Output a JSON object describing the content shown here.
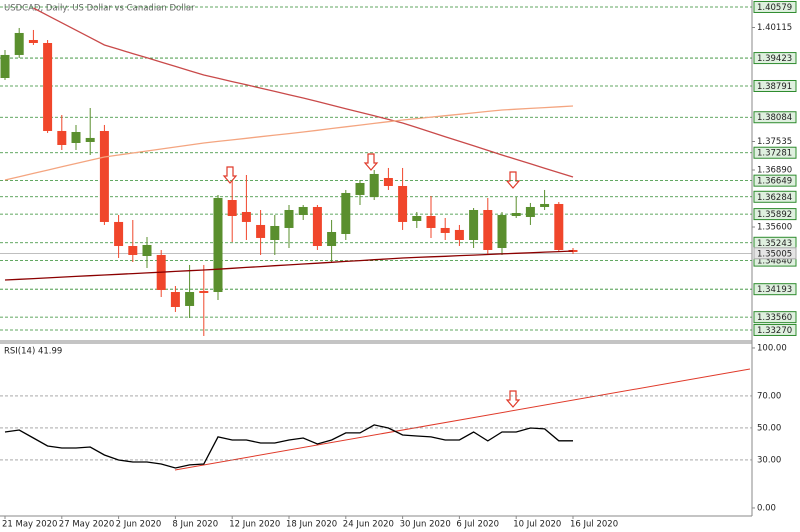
{
  "chart_data": [
    {
      "type": "candlestick",
      "title": "USDCAD, Daily:  US Dollar vs Canadian Dollar",
      "categories": [
        "21 May 2020",
        null,
        null,
        null,
        "27 May 2020",
        null,
        null,
        null,
        "2 Jun 2020",
        null,
        null,
        null,
        "8 Jun 2020",
        null,
        null,
        null,
        "12 Jun 2020",
        null,
        null,
        null,
        "18 Jun 2020",
        null,
        null,
        null,
        "24 Jun 2020",
        null,
        null,
        null,
        "30 Jun 2020",
        null,
        null,
        null,
        "6 Jul 2020",
        null,
        null,
        null,
        "10 Jul 2020",
        null,
        null,
        null,
        "16 Jul 2020"
      ],
      "open": [
        1.38972,
        1.39493,
        1.39832,
        1.39764,
        1.37773,
        1.37501,
        1.37524,
        1.37773,
        1.35714,
        1.3517,
        1.34944,
        1.34967,
        1.34129,
        1.33813,
        1.34152,
        1.34129,
        1.36211,
        1.3594,
        1.35646,
        1.35306,
        1.35578,
        1.35872,
        1.36053,
        1.3517,
        1.35442,
        1.36325,
        1.36279,
        1.36709,
        1.36528,
        1.35736,
        1.35849,
        1.35578,
        1.35533,
        1.35306,
        1.35985,
        1.35125,
        1.35849,
        1.35827,
        1.36053,
        1.36121,
        1.3508
      ],
      "high": [
        1.39606,
        1.40104,
        1.40059,
        1.39832,
        1.38135,
        1.37909,
        1.38293,
        1.37909,
        1.35872,
        1.35759,
        1.35374,
        1.3508,
        1.34265,
        1.34741,
        1.34741,
        1.36325,
        1.36664,
        1.36777,
        1.35985,
        1.35872,
        1.36098,
        1.36098,
        1.36098,
        1.35759,
        1.36438,
        1.36664,
        1.3689,
        1.36936,
        1.36936,
        1.3594,
        1.36302,
        1.35804,
        1.35646,
        1.3603,
        1.36257,
        1.3594,
        1.36279,
        1.36144,
        1.36438,
        1.36166,
        1.35125
      ],
      "low": [
        1.38927,
        1.39425,
        1.39719,
        1.37728,
        1.37343,
        1.37343,
        1.3723,
        1.35646,
        1.34899,
        1.34808,
        1.34673,
        1.34016,
        1.33677,
        1.33541,
        1.33134,
        1.33948,
        1.35261,
        1.35306,
        1.34967,
        1.34967,
        1.35125,
        1.35759,
        1.3508,
        1.34808,
        1.35306,
        1.36098,
        1.36211,
        1.36438,
        1.35533,
        1.35578,
        1.35352,
        1.35306,
        1.3517,
        1.35125,
        1.34989,
        1.34967,
        1.35804,
        1.35646,
        1.35985,
        1.35035,
        1.34989
      ],
      "close": [
        1.39493,
        1.39991,
        1.39764,
        1.37773,
        1.37456,
        1.3775,
        1.37615,
        1.35714,
        1.3517,
        1.34967,
        1.35193,
        1.34175,
        1.3379,
        1.34129,
        1.34107,
        1.36257,
        1.35849,
        1.35714,
        1.35352,
        1.35623,
        1.35985,
        1.36053,
        1.3517,
        1.35487,
        1.3637,
        1.36596,
        1.368,
        1.36528,
        1.35714,
        1.35849,
        1.35578,
        1.35465,
        1.35306,
        1.35985,
        1.3508,
        1.35872,
        1.35917,
        1.36053,
        1.36121,
        1.3508,
        1.35035
      ],
      "up_color": "#5a8f2e",
      "down_color": "#f0462b",
      "series": [
        {
          "color": "#c94a4a",
          "values": [
            null,
            null,
            1.40556,
            1.40389,
            1.40221,
            1.40054,
            1.39886,
            1.39719,
            1.39622,
            1.39525,
            1.39428,
            1.39331,
            1.39234,
            1.39137,
            1.3904,
            1.38966,
            1.38891,
            1.38817,
            1.38743,
            1.38668,
            1.38594,
            1.3852,
            1.38439,
            1.38358,
            1.38277,
            1.38196,
            1.38116,
            1.38035,
            1.37954,
            1.37851,
            1.37747,
            1.37644,
            1.37541,
            1.37437,
            1.37334,
            1.3723,
            1.3713,
            1.37031,
            1.36931,
            1.36832,
            1.36732
          ]
        },
        {
          "color": "#f4a580",
          "values": [
            1.36664,
            1.36738,
            1.36813,
            1.36887,
            1.36962,
            1.37036,
            1.37111,
            1.37185,
            1.3723,
            1.37275,
            1.3732,
            1.37366,
            1.37411,
            1.37456,
            1.37501,
            1.37537,
            1.37572,
            1.37608,
            1.37643,
            1.37679,
            1.37714,
            1.3775,
            1.37789,
            1.37828,
            1.37867,
            1.37906,
            1.37944,
            1.37983,
            1.38022,
            1.38054,
            1.38087,
            1.38119,
            1.38151,
            1.38183,
            1.38216,
            1.38248,
            1.38266,
            1.38284,
            1.38303,
            1.38321,
            1.38339
          ]
        },
        {
          "color": "#8b0000",
          "values": [
            1.34401,
            1.34417,
            1.34433,
            1.34449,
            1.34466,
            1.34482,
            1.34498,
            1.34514,
            1.3453,
            1.34546,
            1.34562,
            1.34578,
            1.34595,
            1.34611,
            1.34627,
            1.34646,
            1.34666,
            1.34685,
            1.34705,
            1.34724,
            1.34743,
            1.34763,
            1.34782,
            1.34802,
            1.34821,
            1.3484,
            1.3486,
            1.34879,
            1.34899,
            1.34912,
            1.34925,
            1.34938,
            1.34952,
            1.34965,
            1.34978,
            1.34991,
            1.35004,
            1.35017,
            1.35031,
            1.35044,
            1.35057
          ]
        }
      ],
      "ylim": [
        1.33043,
        1.40737
      ],
      "yticks": [
        1.40115,
        1.37535,
        {
          "value": 1.3689,
          "label": "1.36890"
        },
        {
          "value": 1.356,
          "label": "1.35600"
        }
      ],
      "levels": [
        1.40579,
        1.39423,
        1.38791,
        1.38084,
        1.37281,
        1.36649,
        1.36284,
        1.35892,
        1.35243,
        {
          "value": 1.3484,
          "label": "1.34840"
        },
        1.34193,
        {
          "value": 1.3356,
          "label": "1.33560"
        },
        {
          "value": 1.3327,
          "label": "1.33270"
        }
      ],
      "level_color": "#2e8b2e",
      "current_price": 1.35005
    },
    {
      "type": "line",
      "title": "RSI(14) 41.99",
      "series": [
        {
          "color": "#000000",
          "values": [
            47.5,
            48.75,
            43.75,
            38.75,
            37.5,
            37.5,
            38.1,
            33.1,
            30,
            28.75,
            28.75,
            27.5,
            25,
            26.9,
            27.5,
            44.4,
            42.5,
            42.5,
            40.6,
            40.6,
            42.5,
            43.75,
            40,
            42.5,
            46.9,
            46.9,
            51.9,
            50,
            45.6,
            45,
            44.4,
            42.5,
            42.5,
            47.5,
            41.9,
            47.5,
            47.5,
            50,
            49.4,
            41.99,
            41.99
          ]
        }
      ],
      "ylim": [
        -4.4,
        103.1
      ],
      "yticks": [
        {
          "value": 100,
          "label": "100.00"
        },
        {
          "value": 70,
          "label": "70.00"
        },
        {
          "value": 50,
          "label": "50.00"
        },
        {
          "value": 30,
          "label": "30.00"
        },
        {
          "value": 0,
          "label": "0.00"
        }
      ]
    }
  ]
}
